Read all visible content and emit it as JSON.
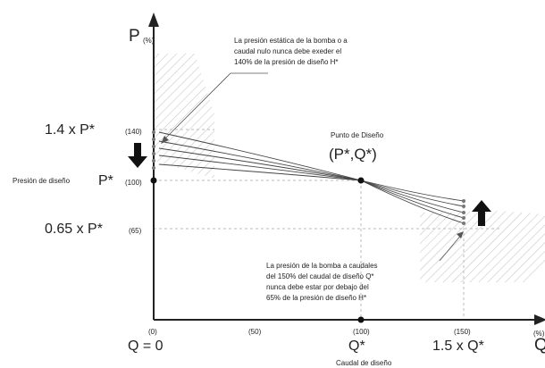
{
  "diagram": {
    "y_axis": {
      "label": "P",
      "unit": "(%)"
    },
    "x_axis": {
      "label": "Q",
      "unit": "(%)"
    },
    "y_levels": [
      {
        "label": "1.4 x P*",
        "value": "(140)"
      },
      {
        "label": "P*",
        "value": "(100)",
        "prefix": "Presión de diseño"
      },
      {
        "label": "0.65 x P*",
        "value": "(65)"
      }
    ],
    "x_ticks": [
      "(0)",
      "(50)",
      "(100)",
      "(150)"
    ],
    "x_labels": [
      "Q = 0",
      "Q*",
      "1.5 x Q*"
    ],
    "x_caption": "Caudal de diseño",
    "design_point": {
      "title": "Punto de Diseño",
      "label": "(P*,Q*)"
    },
    "note_top": [
      "La presión estática de la bomba o a",
      "caudal nulo nunca debe exeder el",
      "140% de la presión de diseño H*"
    ],
    "note_bottom": [
      "La presión de la bomba a caudales",
      "del 150% del caudal de diseño Q*",
      "nunca debe estar por debajo del",
      "65% de la presión de diseño H*"
    ],
    "colors": {
      "ink": "#222222",
      "hatch": "#c8c8c8",
      "guide": "#bbbbbb"
    }
  }
}
